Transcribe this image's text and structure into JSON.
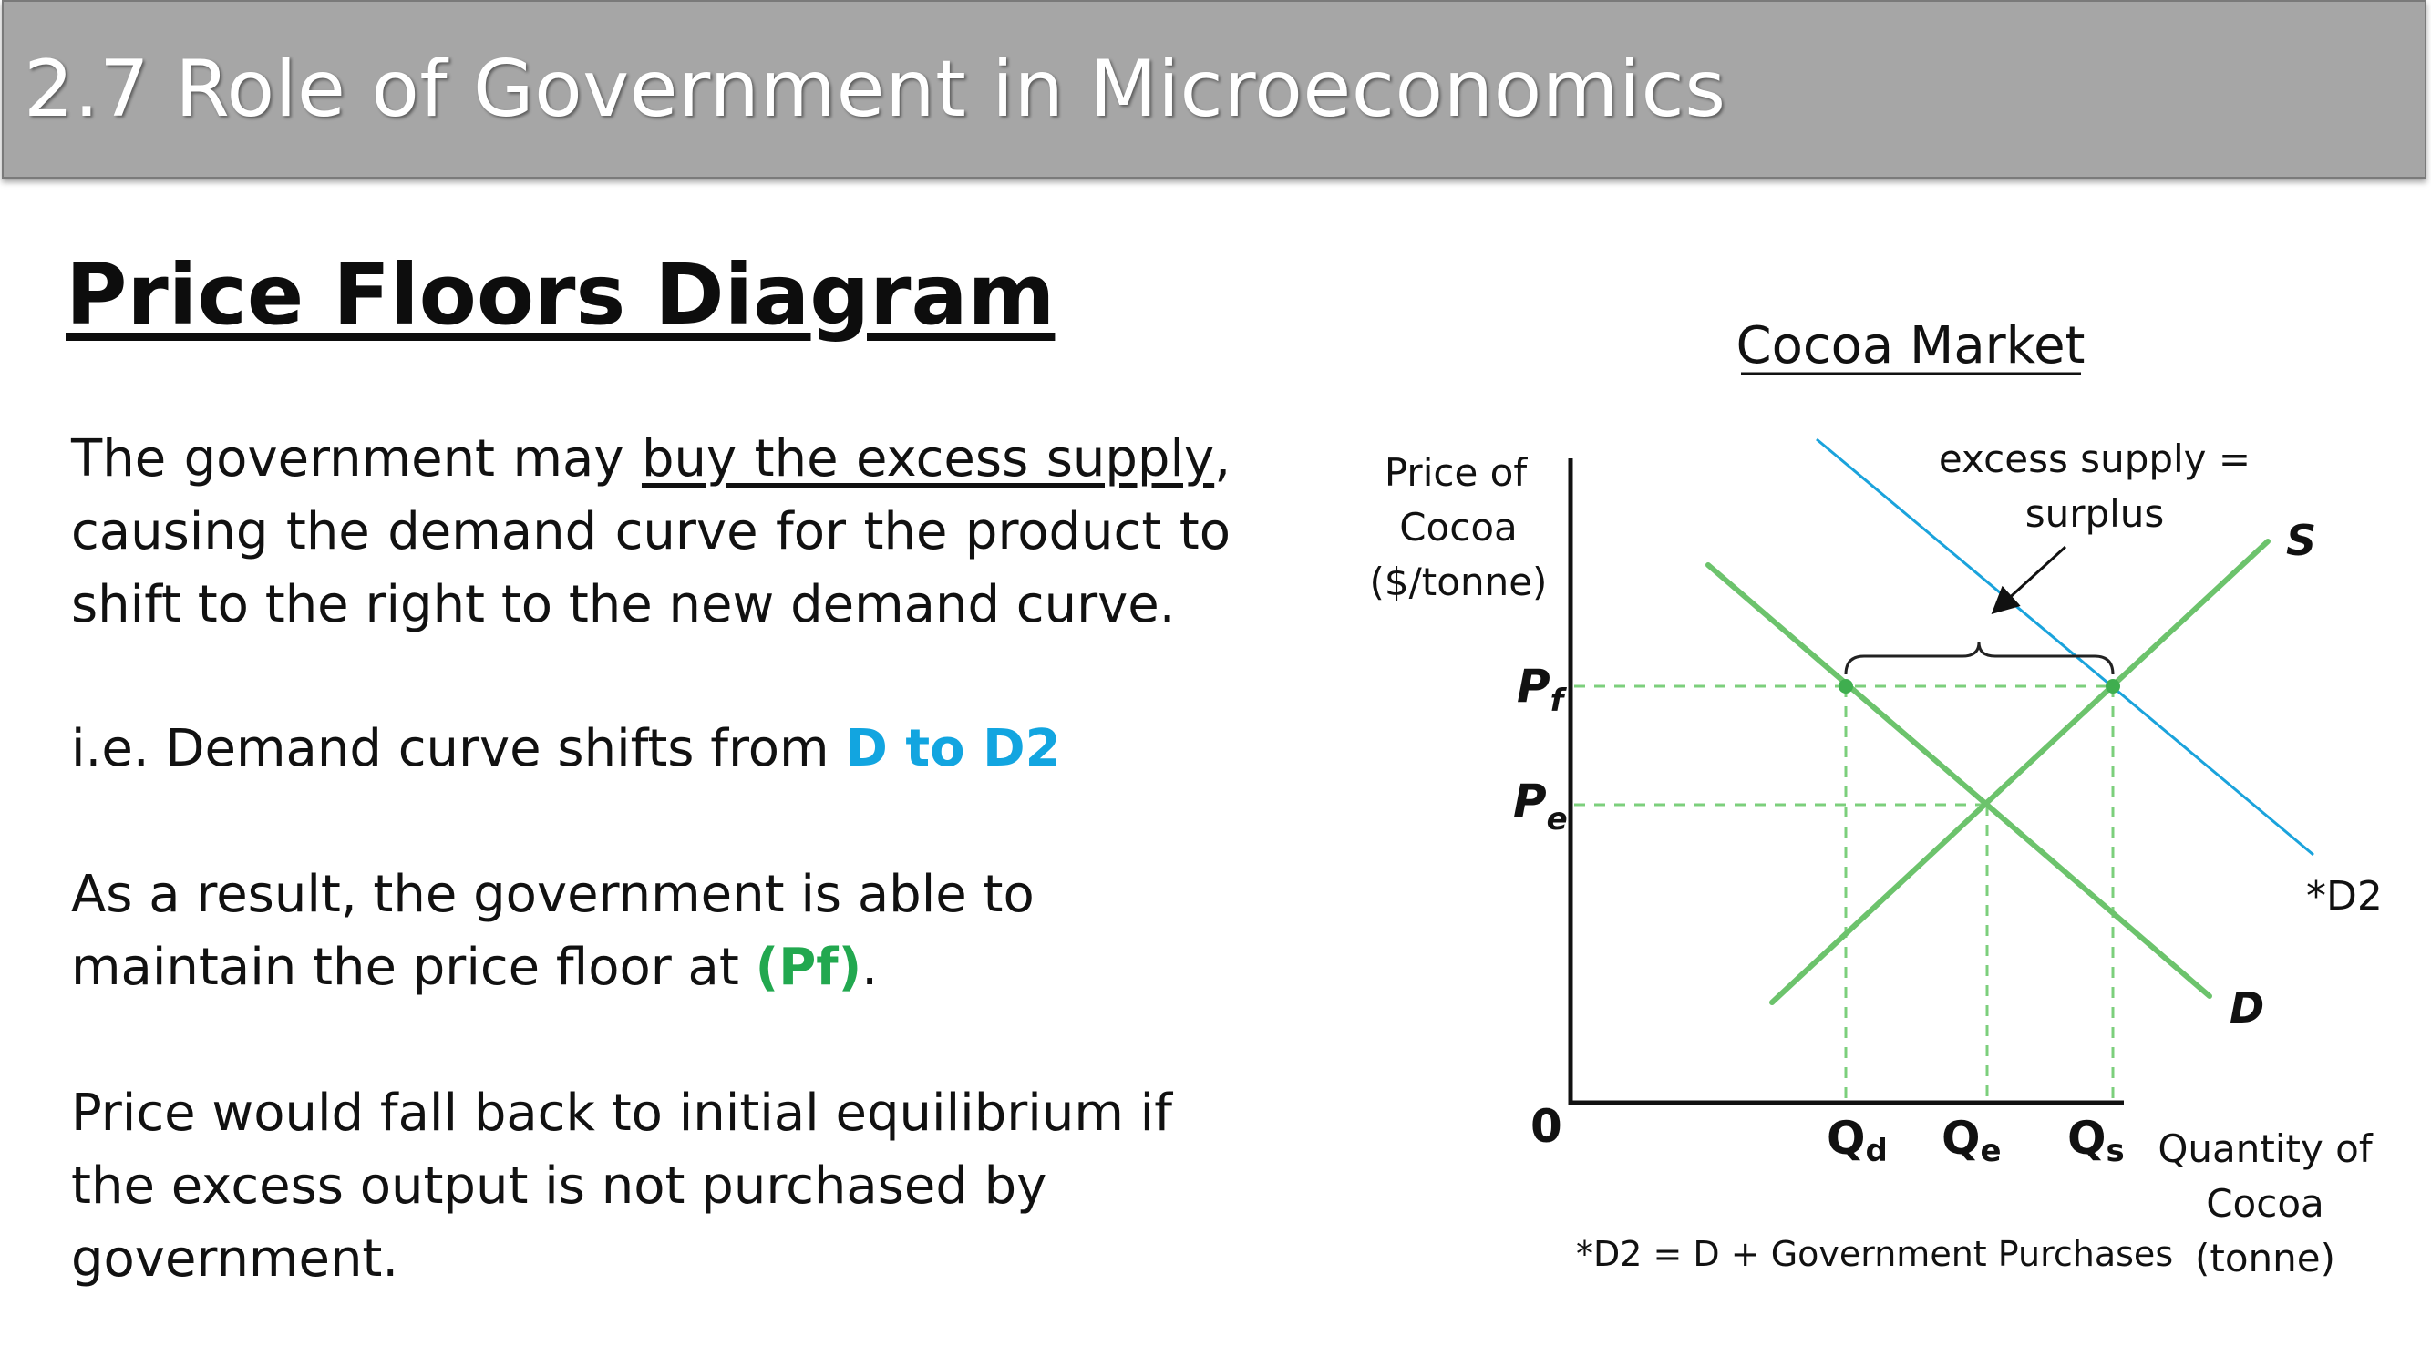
{
  "slide_title": "2.7 Role of Government in Microeconomics",
  "heading": "Price Floors Diagram",
  "paragraph1": {
    "before": "The government may ",
    "underlined": "buy the excess supply",
    "after": ", causing the demand curve for the product to shift to the right to the new demand curve."
  },
  "paragraph2": {
    "before": "i.e. Demand curve shifts from ",
    "highlight": "D to D2"
  },
  "paragraph3": {
    "before": "As a result, the government is able to maintain the price floor at ",
    "highlight": "(Pf)",
    "after": "."
  },
  "paragraph4": "Price would fall back to initial equilibrium if the excess output is not purchased by government.",
  "diagram": {
    "title": "Cocoa Market",
    "y_axis_label": [
      "Price of",
      "Cocoa",
      "($/tonne)"
    ],
    "x_axis_label": [
      "Quantity of",
      "Cocoa",
      "(tonne)"
    ],
    "origin_label": "0",
    "price_labels": {
      "pf": "P",
      "pf_sub": "f",
      "pe": "P",
      "pe_sub": "e"
    },
    "quantity_labels": {
      "qd": "Q",
      "qd_sub": "d",
      "qe": "Q",
      "qe_sub": "e",
      "qs": "Q",
      "qs_sub": "s"
    },
    "curve_labels": {
      "supply": "S",
      "demand": "D",
      "demand2": "*D2"
    },
    "annotation": [
      "excess supply =",
      "surplus"
    ],
    "footnote": "*D2 = D + Government Purchases",
    "colors": {
      "curves": "#6cc36c",
      "dashed": "#7ccf7c",
      "d2": "#1aa3dc",
      "axis": "#111111"
    }
  }
}
